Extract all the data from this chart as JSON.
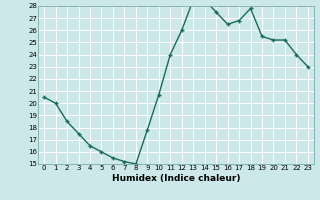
{
  "x": [
    0,
    1,
    2,
    3,
    4,
    5,
    6,
    7,
    8,
    9,
    10,
    11,
    12,
    13,
    14,
    15,
    16,
    17,
    18,
    19,
    20,
    21,
    22,
    23
  ],
  "y": [
    20.5,
    20.0,
    18.5,
    17.5,
    16.5,
    16.0,
    15.5,
    15.2,
    15.0,
    17.8,
    20.7,
    24.0,
    26.0,
    28.5,
    28.5,
    27.5,
    26.5,
    26.8,
    27.8,
    25.5,
    25.2,
    25.2,
    24.0,
    23.0
  ],
  "line_color": "#1a6b5a",
  "marker": "+",
  "markersize": 3.5,
  "linewidth": 1.0,
  "xlabel": "Humidex (Indice chaleur)",
  "ylim": [
    15,
    28
  ],
  "xlim": [
    -0.5,
    23.5
  ],
  "yticks": [
    15,
    16,
    17,
    18,
    19,
    20,
    21,
    22,
    23,
    24,
    25,
    26,
    27,
    28
  ],
  "xticks": [
    0,
    1,
    2,
    3,
    4,
    5,
    6,
    7,
    8,
    9,
    10,
    11,
    12,
    13,
    14,
    15,
    16,
    17,
    18,
    19,
    20,
    21,
    22,
    23
  ],
  "bg_color": "#cde8e8",
  "grid_color": "#b0d0d0",
  "tick_fontsize": 5.0,
  "xlabel_fontsize": 6.5
}
